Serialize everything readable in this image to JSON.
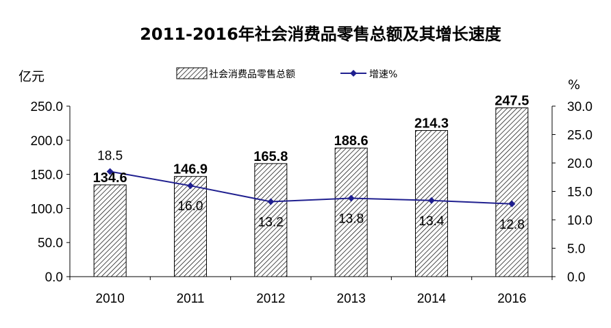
{
  "chart_data": {
    "type": "bar",
    "title": "2011-2016年社会消费品零售总额及其增长速度",
    "categories": [
      "2010",
      "2011",
      "2012",
      "2013",
      "2014",
      "2016"
    ],
    "series": [
      {
        "name": "社会消费品零售总额",
        "type": "bar",
        "axis": "left",
        "values": [
          134.6,
          146.9,
          165.8,
          188.6,
          214.3,
          247.5
        ],
        "labels": [
          "134.6",
          "146.9",
          "165.8",
          "188.6",
          "214.3",
          "247.5"
        ]
      },
      {
        "name": "增速%",
        "type": "line",
        "axis": "right",
        "values": [
          18.5,
          16.0,
          13.2,
          13.8,
          13.4,
          12.8
        ],
        "labels": [
          "18.5",
          "16.0",
          "13.2",
          "13.8",
          "13.4",
          "12.8"
        ]
      }
    ],
    "ylabel": "亿元",
    "y2label": "%",
    "ylim": [
      0,
      250
    ],
    "y2lim": [
      0,
      30
    ],
    "yticks": [
      "0.0",
      "50.0",
      "100.0",
      "150.0",
      "200.0",
      "250.0"
    ],
    "y2ticks": [
      "0.0",
      "5.0",
      "10.0",
      "15.0",
      "20.0",
      "25.0",
      "30.0"
    ],
    "grid": false,
    "legend_position": "top",
    "colors": {
      "line": "#1f1f8f",
      "bar_hatch": "#000000",
      "bar_fill": "#ffffff"
    }
  }
}
